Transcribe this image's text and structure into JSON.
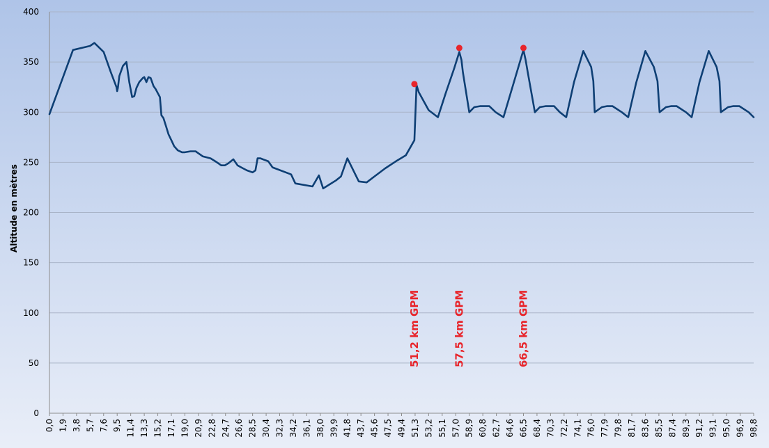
{
  "chart_data": {
    "type": "line",
    "title": "",
    "xlabel": "",
    "ylabel": "Altitude en mètres",
    "ylim": [
      0,
      400
    ],
    "xlim": [
      0,
      98.8
    ],
    "grid": true,
    "legend": "none",
    "y_ticks": [
      "0",
      "50",
      "100",
      "150",
      "200",
      "250",
      "300",
      "350",
      "400"
    ],
    "x_ticks": [
      "0,0",
      "1,9",
      "3,8",
      "5,7",
      "7,6",
      "9,5",
      "11,4",
      "13,3",
      "15,2",
      "17,1",
      "19,0",
      "20,9",
      "22,8",
      "24,7",
      "26,6",
      "28,5",
      "30,4",
      "32,3",
      "34,2",
      "36,1",
      "38,0",
      "39,9",
      "41,8",
      "43,7",
      "45,6",
      "47,5",
      "49,4",
      "51,3",
      "53,2",
      "55,1",
      "57,0",
      "58,9",
      "60,8",
      "62,7",
      "64,6",
      "66,5",
      "68,4",
      "70,3",
      "72,2",
      "74,1",
      "76,0",
      "77,9",
      "79,8",
      "81,7",
      "83,6",
      "85,5",
      "87,4",
      "89,3",
      "91,2",
      "93,1",
      "95,0",
      "96,9",
      "98,8"
    ],
    "colors": {
      "line": "#0E3F74",
      "marker": "#E8252B",
      "gridline": "#A9B4C8",
      "background_top": "#AFC4E8",
      "background_bottom": "#E9EEF8"
    },
    "series": [
      {
        "x": [
          0.0,
          3.3,
          5.7,
          6.3,
          7.6,
          8.6,
          9.4,
          9.5,
          9.6,
          9.8,
          10.3,
          10.8,
          11.2,
          11.6,
          11.9,
          12.2,
          12.6,
          13.1,
          13.3,
          13.6,
          13.9,
          14.2,
          14.6,
          14.9,
          15.2,
          15.5,
          15.7,
          16.0,
          16.4,
          16.7,
          17.1,
          17.5,
          18.0,
          18.6,
          19.0,
          19.8,
          20.5,
          21.1,
          21.5,
          22.6,
          23.5,
          24.1,
          24.6,
          25.1,
          25.8,
          26.4,
          26.9,
          27.7,
          28.5,
          28.9,
          29.2,
          29.6,
          30.7,
          31.3,
          33.9,
          34.5,
          36.9,
          37.8,
          38.4,
          39.3,
          40.2,
          40.9,
          41.8,
          43.4,
          44.5,
          45.6,
          47.1,
          48.6,
          50.0,
          51.2,
          51.5,
          51.8,
          53.2,
          54.5,
          55.6,
          56.8,
          57.5,
          57.8,
          58.0,
          58.9,
          59.6,
          60.4,
          61.7,
          62.6,
          63.7,
          65.0,
          66.5,
          66.8,
          67.1,
          68.1,
          68.8,
          69.6,
          70.8,
          71.6,
          72.5,
          73.6,
          74.9,
          76.0,
          76.3,
          76.5,
          77.5,
          78.2,
          79.0,
          80.3,
          81.2,
          82.3,
          83.6,
          84.8,
          85.3,
          85.6,
          86.5,
          87.2,
          88.0,
          89.3,
          90.1,
          91.2,
          92.5,
          93.6,
          94.0,
          94.2,
          95.2,
          95.9,
          96.8,
          98.1,
          98.8
        ],
        "y": [
          298,
          362,
          366,
          369,
          360,
          340,
          325,
          321,
          324,
          336,
          346,
          350,
          330,
          315,
          316,
          324,
          330,
          334,
          335,
          330,
          335,
          334,
          326,
          323,
          319,
          315,
          297,
          294,
          285,
          278,
          272,
          266,
          262,
          260,
          260,
          261,
          261,
          258,
          256,
          254,
          250,
          247,
          247,
          249,
          253,
          247,
          245,
          242,
          240,
          242,
          254,
          254,
          251,
          245,
          238,
          229,
          226,
          237,
          224,
          228,
          232,
          236,
          254,
          231,
          230,
          236,
          244,
          251,
          257,
          272,
          327,
          320,
          302,
          295,
          319,
          344,
          360,
          352,
          340,
          300,
          305,
          306,
          306,
          300,
          295,
          326,
          362,
          352,
          340,
          300,
          305,
          306,
          306,
          300,
          295,
          330,
          361,
          345,
          331,
          300,
          305,
          306,
          306,
          300,
          295,
          329,
          361,
          345,
          331,
          300,
          305,
          306,
          306,
          300,
          295,
          330,
          361,
          345,
          331,
          300,
          305,
          306,
          306,
          300,
          295
        ]
      }
    ],
    "annotations": [
      {
        "x": 51.2,
        "y": 328,
        "label": "51,2 km GPM"
      },
      {
        "x": 57.5,
        "y": 364,
        "label": "57,5 km GPM"
      },
      {
        "x": 66.5,
        "y": 364,
        "label": "66,5 km GPM"
      }
    ]
  }
}
